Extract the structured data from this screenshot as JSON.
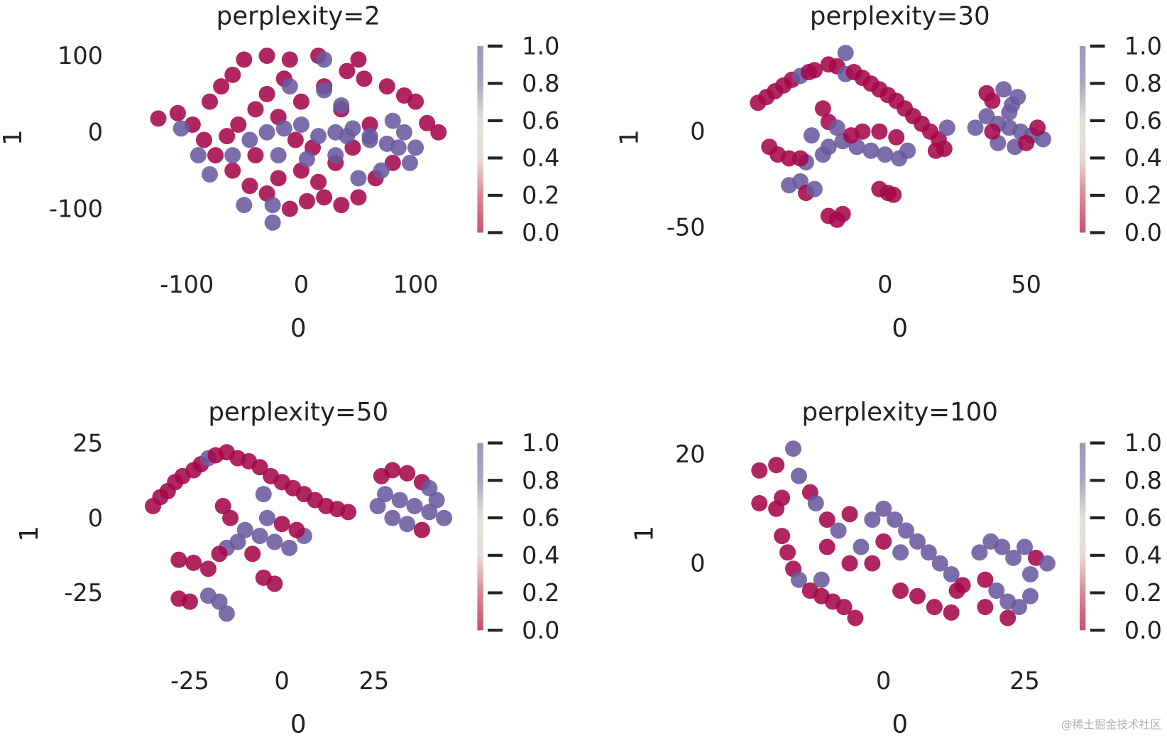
{
  "colors": {
    "value_0": "#a4084a",
    "value_1": "#6a5a9f",
    "colorbar_bottom": "#c8506e",
    "colorbar_mid": "#e2e1d8",
    "colorbar_top": "#9a98b8"
  },
  "watermark": "@稀土掘金技术社区",
  "chart_data": [
    {
      "type": "scatter",
      "title": "perplexity=2",
      "xlabel": "0",
      "ylabel": "1",
      "xticks": [
        "-100",
        "0",
        "100"
      ],
      "yticks": [
        "100",
        "0",
        "-100"
      ],
      "colorbar": {
        "ticks": [
          "1.0",
          "0.8",
          "0.6",
          "0.4",
          "0.2",
          "0.0"
        ],
        "range": [
          0,
          1
        ]
      },
      "points": [
        [
          -125,
          18,
          0
        ],
        [
          -108,
          25,
          0
        ],
        [
          -95,
          10,
          0
        ],
        [
          -80,
          40,
          0
        ],
        [
          -70,
          60,
          0
        ],
        [
          -60,
          75,
          0
        ],
        [
          -50,
          95,
          0
        ],
        [
          -30,
          100,
          0
        ],
        [
          -10,
          95,
          0
        ],
        [
          15,
          100,
          0
        ],
        [
          50,
          95,
          0
        ],
        [
          55,
          70,
          0
        ],
        [
          75,
          60,
          0
        ],
        [
          90,
          48,
          0
        ],
        [
          100,
          40,
          0
        ],
        [
          110,
          12,
          0
        ],
        [
          120,
          0,
          0
        ],
        [
          -85,
          -10,
          0
        ],
        [
          -75,
          -30,
          0
        ],
        [
          -60,
          -50,
          0
        ],
        [
          -45,
          -70,
          0
        ],
        [
          -30,
          -80,
          0
        ],
        [
          -10,
          -100,
          0
        ],
        [
          5,
          -90,
          0
        ],
        [
          20,
          -85,
          0
        ],
        [
          35,
          -95,
          0
        ],
        [
          50,
          -85,
          0
        ],
        [
          65,
          -60,
          0
        ],
        [
          80,
          -40,
          0
        ],
        [
          -40,
          30,
          0
        ],
        [
          -30,
          50,
          0
        ],
        [
          -20,
          20,
          0
        ],
        [
          -55,
          10,
          0
        ],
        [
          0,
          40,
          0
        ],
        [
          20,
          60,
          0
        ],
        [
          35,
          30,
          0
        ],
        [
          10,
          -20,
          0
        ],
        [
          0,
          -50,
          0
        ],
        [
          -20,
          -60,
          0
        ],
        [
          30,
          -40,
          0
        ],
        [
          -5,
          -10,
          0
        ],
        [
          45,
          -20,
          0
        ],
        [
          -65,
          -5,
          0
        ],
        [
          -40,
          -30,
          0
        ],
        [
          15,
          -65,
          0
        ],
        [
          60,
          10,
          0
        ],
        [
          -15,
          70,
          0
        ],
        [
          40,
          80,
          0
        ],
        [
          -105,
          5,
          1
        ],
        [
          -90,
          -30,
          1
        ],
        [
          -80,
          -55,
          1
        ],
        [
          -60,
          -30,
          1
        ],
        [
          -45,
          -10,
          1
        ],
        [
          -30,
          0,
          1
        ],
        [
          -15,
          5,
          1
        ],
        [
          0,
          10,
          1
        ],
        [
          15,
          -5,
          1
        ],
        [
          30,
          0,
          1
        ],
        [
          45,
          5,
          1
        ],
        [
          60,
          -5,
          1
        ],
        [
          75,
          -15,
          1
        ],
        [
          85,
          -20,
          1
        ],
        [
          90,
          0,
          1
        ],
        [
          95,
          -40,
          1
        ],
        [
          70,
          -50,
          1
        ],
        [
          50,
          -60,
          1
        ],
        [
          35,
          35,
          1
        ],
        [
          20,
          55,
          1
        ],
        [
          -10,
          60,
          1
        ],
        [
          -25,
          -95,
          1
        ],
        [
          -25,
          -118,
          1
        ],
        [
          30,
          -30,
          1
        ],
        [
          60,
          -10,
          1
        ],
        [
          80,
          15,
          1
        ],
        [
          5,
          -35,
          1
        ],
        [
          -20,
          -30,
          1
        ],
        [
          -50,
          -95,
          1
        ],
        [
          20,
          95,
          1
        ],
        [
          100,
          -20,
          1
        ],
        [
          40,
          -5,
          1
        ]
      ]
    },
    {
      "type": "scatter",
      "title": "perplexity=30",
      "xlabel": "0",
      "ylabel": "1",
      "xticks": [
        "0",
        "50"
      ],
      "yticks": [
        "0",
        "-50"
      ],
      "colorbar": {
        "ticks": [
          "1.0",
          "0.8",
          "0.6",
          "0.4",
          "0.2",
          "0.0"
        ],
        "range": [
          0,
          1
        ]
      },
      "points": [
        [
          -45,
          15,
          0
        ],
        [
          -42,
          18,
          0
        ],
        [
          -39,
          21,
          0
        ],
        [
          -36,
          24,
          0
        ],
        [
          -33,
          27,
          0
        ],
        [
          -30,
          29,
          1
        ],
        [
          -27,
          31,
          0
        ],
        [
          -25,
          32,
          0
        ],
        [
          -20,
          35,
          0
        ],
        [
          -17,
          34,
          0
        ],
        [
          -14,
          41,
          1
        ],
        [
          -14,
          30,
          1
        ],
        [
          -11,
          31,
          0
        ],
        [
          -8,
          28,
          0
        ],
        [
          -5,
          25,
          0
        ],
        [
          -2,
          22,
          0
        ],
        [
          1,
          19,
          0
        ],
        [
          4,
          16,
          0
        ],
        [
          7,
          12,
          0
        ],
        [
          10,
          8,
          0
        ],
        [
          13,
          4,
          0
        ],
        [
          16,
          0,
          0
        ],
        [
          19,
          -4,
          0
        ],
        [
          21,
          -9,
          0
        ],
        [
          18,
          -10,
          0
        ],
        [
          22,
          2,
          1
        ],
        [
          -22,
          12,
          0
        ],
        [
          -20,
          5,
          0
        ],
        [
          -26,
          -2,
          1
        ],
        [
          -20,
          -8,
          1
        ],
        [
          -15,
          -5,
          1
        ],
        [
          -10,
          -8,
          1
        ],
        [
          -5,
          -10,
          1
        ],
        [
          0,
          -12,
          1
        ],
        [
          5,
          -14,
          1
        ],
        [
          8,
          -10,
          1
        ],
        [
          -8,
          0,
          0
        ],
        [
          -2,
          0,
          0
        ],
        [
          4,
          -3,
          0
        ],
        [
          -12,
          -2,
          0
        ],
        [
          -17,
          2,
          1
        ],
        [
          -28,
          -16,
          1
        ],
        [
          -22,
          -12,
          1
        ],
        [
          -41,
          -8,
          0
        ],
        [
          -38,
          -12,
          0
        ],
        [
          -34,
          -14,
          0
        ],
        [
          -30,
          -14,
          0
        ],
        [
          -34,
          -28,
          1
        ],
        [
          -30,
          -26,
          1
        ],
        [
          -28,
          -32,
          0
        ],
        [
          -25,
          -30,
          1
        ],
        [
          -2,
          -30,
          0
        ],
        [
          1,
          -32,
          0
        ],
        [
          3,
          -33,
          0
        ],
        [
          -20,
          -44,
          0
        ],
        [
          -17,
          -46,
          0
        ],
        [
          -15,
          -43,
          0
        ],
        [
          36,
          20,
          0
        ],
        [
          38,
          16,
          0
        ],
        [
          42,
          22,
          1
        ],
        [
          45,
          14,
          1
        ],
        [
          47,
          18,
          1
        ],
        [
          36,
          8,
          1
        ],
        [
          40,
          4,
          1
        ],
        [
          44,
          2,
          1
        ],
        [
          48,
          0,
          1
        ],
        [
          52,
          -2,
          1
        ],
        [
          56,
          -4,
          1
        ],
        [
          40,
          -6,
          1
        ],
        [
          46,
          -8,
          1
        ],
        [
          50,
          -6,
          0
        ],
        [
          38,
          0,
          0
        ],
        [
          54,
          2,
          0
        ],
        [
          44,
          10,
          1
        ],
        [
          32,
          2,
          1
        ]
      ]
    },
    {
      "type": "scatter",
      "title": "perplexity=50",
      "xlabel": "0",
      "ylabel": "1",
      "xticks": [
        "-25",
        "0",
        "25"
      ],
      "yticks": [
        "25",
        "0",
        "-25"
      ],
      "colorbar": {
        "ticks": [
          "1.0",
          "0.8",
          "0.6",
          "0.4",
          "0.2",
          "0.0"
        ],
        "range": [
          0,
          1
        ]
      },
      "points": [
        [
          -35,
          4,
          0
        ],
        [
          -33,
          7,
          0
        ],
        [
          -31,
          9,
          0
        ],
        [
          -29,
          12,
          0
        ],
        [
          -27,
          14,
          0
        ],
        [
          -24,
          16,
          0
        ],
        [
          -22,
          18,
          0
        ],
        [
          -20,
          20,
          1
        ],
        [
          -18,
          21,
          0
        ],
        [
          -15,
          22,
          0
        ],
        [
          -12,
          20,
          0
        ],
        [
          -9,
          19,
          0
        ],
        [
          -6,
          17,
          0
        ],
        [
          -3,
          14,
          0
        ],
        [
          0,
          12,
          0
        ],
        [
          3,
          10,
          0
        ],
        [
          6,
          8,
          0
        ],
        [
          9,
          6,
          0
        ],
        [
          12,
          4,
          0
        ],
        [
          15,
          3,
          0
        ],
        [
          18,
          2,
          0
        ],
        [
          -5,
          8,
          1
        ],
        [
          27,
          14,
          0
        ],
        [
          30,
          16,
          0
        ],
        [
          34,
          15,
          0
        ],
        [
          38,
          12,
          0
        ],
        [
          28,
          8,
          1
        ],
        [
          32,
          6,
          1
        ],
        [
          36,
          4,
          1
        ],
        [
          40,
          2,
          1
        ],
        [
          44,
          0,
          1
        ],
        [
          30,
          0,
          1
        ],
        [
          34,
          -2,
          1
        ],
        [
          38,
          -4,
          0
        ],
        [
          42,
          6,
          1
        ],
        [
          26,
          4,
          1
        ],
        [
          40,
          10,
          1
        ],
        [
          -16,
          4,
          0
        ],
        [
          -14,
          0,
          0
        ],
        [
          -10,
          -4,
          1
        ],
        [
          -6,
          -6,
          1
        ],
        [
          -2,
          -8,
          1
        ],
        [
          2,
          -10,
          1
        ],
        [
          6,
          -6,
          1
        ],
        [
          -12,
          -8,
          1
        ],
        [
          -8,
          -12,
          0
        ],
        [
          -4,
          0,
          1
        ],
        [
          0,
          -2,
          0
        ],
        [
          4,
          -4,
          0
        ],
        [
          -15,
          -10,
          1
        ],
        [
          -28,
          -14,
          0
        ],
        [
          -24,
          -15,
          0
        ],
        [
          -20,
          -17,
          0
        ],
        [
          -17,
          -12,
          0
        ],
        [
          -5,
          -20,
          0
        ],
        [
          -2,
          -22,
          0
        ],
        [
          -28,
          -27,
          0
        ],
        [
          -25,
          -28,
          0
        ],
        [
          -20,
          -26,
          1
        ],
        [
          -17,
          -28,
          1
        ],
        [
          -15,
          -32,
          1
        ]
      ]
    },
    {
      "type": "scatter",
      "title": "perplexity=100",
      "xlabel": "0",
      "ylabel": "1",
      "xticks": [
        "0",
        "25"
      ],
      "yticks": [
        "20",
        "0"
      ],
      "colorbar": {
        "ticks": [
          "1.0",
          "0.8",
          "0.6",
          "0.4",
          "0.2",
          "0.0"
        ],
        "range": [
          0,
          1
        ]
      },
      "points": [
        [
          -22,
          17,
          0
        ],
        [
          -19,
          18,
          0
        ],
        [
          -16,
          21,
          1
        ],
        [
          -15,
          16,
          1
        ],
        [
          -13,
          13,
          0
        ],
        [
          -18,
          12,
          0
        ],
        [
          -22,
          11,
          0
        ],
        [
          -19,
          10,
          0
        ],
        [
          -18,
          5,
          0
        ],
        [
          -17,
          2,
          0
        ],
        [
          -16,
          -1,
          0
        ],
        [
          -15,
          -3,
          1
        ],
        [
          -13,
          -5,
          0
        ],
        [
          -11,
          -6,
          0
        ],
        [
          -9,
          -7,
          0
        ],
        [
          -7,
          -8,
          0
        ],
        [
          -5,
          -10,
          0
        ],
        [
          -11,
          -3,
          1
        ],
        [
          -12,
          11,
          1
        ],
        [
          -10,
          8,
          0
        ],
        [
          -8,
          6,
          1
        ],
        [
          -6,
          9,
          0
        ],
        [
          -4,
          3,
          1
        ],
        [
          -2,
          8,
          1
        ],
        [
          0,
          10,
          1
        ],
        [
          2,
          8,
          1
        ],
        [
          4,
          6,
          1
        ],
        [
          6,
          4,
          1
        ],
        [
          8,
          2,
          1
        ],
        [
          10,
          0,
          1
        ],
        [
          12,
          -2,
          1
        ],
        [
          -6,
          0,
          0
        ],
        [
          -2,
          0,
          0
        ],
        [
          -10,
          3,
          0
        ],
        [
          0,
          4,
          0
        ],
        [
          3,
          2,
          1
        ],
        [
          14,
          -4,
          0
        ],
        [
          17,
          2,
          1
        ],
        [
          19,
          4,
          1
        ],
        [
          21,
          3,
          1
        ],
        [
          23,
          1,
          1
        ],
        [
          25,
          3,
          1
        ],
        [
          27,
          1,
          0
        ],
        [
          29,
          0,
          1
        ],
        [
          18,
          -3,
          0
        ],
        [
          20,
          -5,
          1
        ],
        [
          22,
          -7,
          1
        ],
        [
          24,
          -8,
          1
        ],
        [
          26,
          -6,
          1
        ],
        [
          18,
          -8,
          0
        ],
        [
          22,
          -10,
          0
        ],
        [
          26,
          -2,
          1
        ],
        [
          3,
          -5,
          0
        ],
        [
          6,
          -6,
          0
        ],
        [
          9,
          -8,
          0
        ],
        [
          12,
          -9,
          0
        ],
        [
          13,
          -5,
          0
        ]
      ]
    }
  ]
}
